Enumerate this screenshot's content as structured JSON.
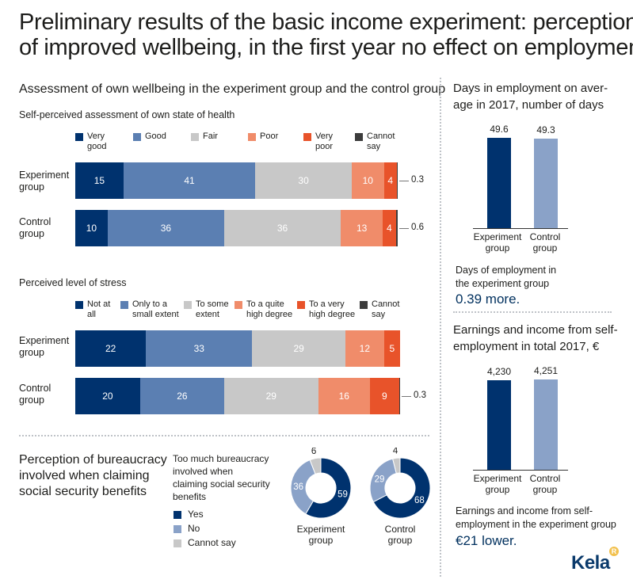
{
  "title_line1": "Preliminary results of the basic income experiment: perception",
  "title_line2": "of improved wellbeing, in the first year no effect on employment",
  "wellbeing": {
    "section_title": "Assessment of own wellbeing in the experiment group and the control group",
    "health_title": "Self-perceived assessment of own state of health",
    "stress_title": "Perceived level of stress"
  },
  "colors": {
    "c1": "#00326e",
    "c2": "#5b7fb2",
    "c3": "#c8c8c8",
    "c4": "#f08c6a",
    "c5": "#e8532a",
    "c6": "#3c3c3c",
    "donut_yes": "#00326e",
    "donut_no": "#8aa2c8",
    "donut_cannot": "#c8c8c8",
    "bar_exp": "#00326e",
    "bar_ctrl": "#8aa2c8"
  },
  "chart_data": [
    {
      "type": "bar",
      "orientation": "horizontal-stacked-100",
      "title": "Self-perceived assessment of own state of health",
      "categories": [
        "Experiment group",
        "Control group"
      ],
      "legend": [
        "Very good",
        "Good",
        "Fair",
        "Poor",
        "Very poor",
        "Cannot say"
      ],
      "series": [
        {
          "name": "Very good",
          "values": [
            15,
            10
          ]
        },
        {
          "name": "Good",
          "values": [
            41,
            36
          ]
        },
        {
          "name": "Fair",
          "values": [
            30,
            36
          ]
        },
        {
          "name": "Poor",
          "values": [
            10,
            13
          ]
        },
        {
          "name": "Very poor",
          "values": [
            4,
            4
          ]
        },
        {
          "name": "Cannot say",
          "values": [
            0.3,
            0.6
          ]
        }
      ],
      "labels": [
        [
          "15",
          "41",
          "30",
          "10",
          "4",
          "0.3"
        ],
        [
          "10",
          "36",
          "36",
          "13",
          "4",
          "0.6"
        ]
      ]
    },
    {
      "type": "bar",
      "orientation": "horizontal-stacked-100",
      "title": "Perceived level of stress",
      "categories": [
        "Experiment group",
        "Control group"
      ],
      "legend": [
        "Not at all",
        "Only to a small extent",
        "To some extent",
        "To a quite high degree",
        "To a very high degree",
        "Cannot say"
      ],
      "series": [
        {
          "name": "Not at all",
          "values": [
            22,
            20
          ]
        },
        {
          "name": "Only to a small extent",
          "values": [
            33,
            26
          ]
        },
        {
          "name": "To some extent",
          "values": [
            29,
            29
          ]
        },
        {
          "name": "To a quite high degree",
          "values": [
            12,
            16
          ]
        },
        {
          "name": "To a very high degree",
          "values": [
            5,
            9
          ]
        },
        {
          "name": "Cannot say",
          "values": [
            0,
            0.3
          ]
        }
      ],
      "labels": [
        [
          "22",
          "33",
          "29",
          "12",
          "5",
          ""
        ],
        [
          "20",
          "26",
          "29",
          "16",
          "9",
          "0.3"
        ]
      ]
    },
    {
      "type": "pie",
      "variant": "donut",
      "title": "Too much bureaucracy involved when claiming social security benefits",
      "legend": [
        "Yes",
        "No",
        "Cannot say"
      ],
      "series": [
        {
          "name": "Experiment group",
          "values": [
            59,
            36,
            6
          ]
        },
        {
          "name": "Control group",
          "values": [
            68,
            29,
            4
          ]
        }
      ]
    },
    {
      "type": "bar",
      "title": "Days in employment on average in 2017, number of days",
      "categories": [
        "Experiment group",
        "Control group"
      ],
      "values": [
        49.6,
        49.3
      ],
      "value_labels": [
        "49.6",
        "49.3"
      ]
    },
    {
      "type": "bar",
      "title": "Earnings and income from self-employment in total 2017, €",
      "categories": [
        "Experiment group",
        "Control group"
      ],
      "values": [
        4230,
        4251
      ],
      "value_labels": [
        "4,230",
        "4,251"
      ]
    }
  ],
  "health_legend": {
    "l1a": "Very",
    "l1b": "good",
    "l2": "Good",
    "l3": "Fair",
    "l4": "Poor",
    "l5a": "Very",
    "l5b": "poor",
    "l6a": "Cannot",
    "l6b": "say"
  },
  "stress_legend": {
    "l1a": "Not at",
    "l1b": "all",
    "l2a": "Only to a",
    "l2b": "small extent",
    "l3a": "To some",
    "l3b": "extent",
    "l4a": "To a quite",
    "l4b": "high degree",
    "l5a": "To a very",
    "l5b": "high degree",
    "l6a": "Cannot",
    "l6b": "say"
  },
  "groups": {
    "exp_a": "Experiment",
    "exp_b": "group",
    "ctrl_a": "Control",
    "ctrl_b": "group"
  },
  "bureaucracy": {
    "title_l1": "Perception of bureaucracy",
    "title_l2": "involved when claiming",
    "title_l3": "social security benefits",
    "q_l1": "Too much bureaucracy",
    "q_l2": "involved when",
    "q_l3": "claiming social security",
    "q_l4": "benefits",
    "yes": "Yes",
    "no": "No",
    "cannot": "Cannot say",
    "exp_l1": "Experiment",
    "exp_l2": "group",
    "ctrl_l1": "Control",
    "ctrl_l2": "group"
  },
  "employment": {
    "title_l1": "Days in employment on aver-",
    "title_l2": "age in 2017, number of days",
    "note_l1": "Days of employment in",
    "note_l2": "the experiment group",
    "highlight": "0.39 more."
  },
  "earnings": {
    "title_l1": "Earnings and income from self-",
    "title_l2": "employment in total 2017, €",
    "note_l1": "Earnings and income from self-",
    "note_l2": "employment in the experiment group",
    "highlight": "€21 lower."
  },
  "logo": {
    "text": "Kela",
    "badge": "R"
  }
}
